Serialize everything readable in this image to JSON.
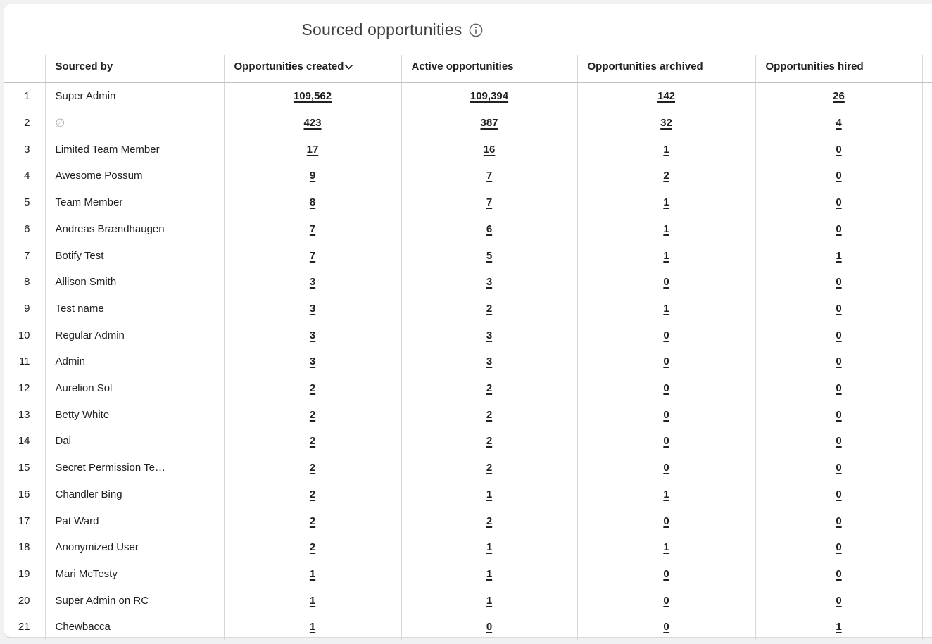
{
  "chart_data": {
    "type": "table",
    "title": "Sourced opportunities",
    "columns": [
      "Sourced by",
      "Opportunities created",
      "Active opportunities",
      "Opportunities archived",
      "Opportunities hired"
    ],
    "sort": {
      "column": "Opportunities created",
      "direction": "desc"
    },
    "null_symbol": "∅",
    "rows": [
      [
        1,
        "Super Admin",
        "109,562",
        "109,394",
        "142",
        "26"
      ],
      [
        2,
        "∅",
        "423",
        "387",
        "32",
        "4"
      ],
      [
        3,
        "Limited Team Member",
        "17",
        "16",
        "1",
        "0"
      ],
      [
        4,
        "Awesome Possum",
        "9",
        "7",
        "2",
        "0"
      ],
      [
        5,
        "Team Member",
        "8",
        "7",
        "1",
        "0"
      ],
      [
        6,
        "Andreas Brændhaugen",
        "7",
        "6",
        "1",
        "0"
      ],
      [
        7,
        "Botify Test",
        "7",
        "5",
        "1",
        "1"
      ],
      [
        8,
        "Allison Smith",
        "3",
        "3",
        "0",
        "0"
      ],
      [
        9,
        "Test name",
        "3",
        "2",
        "1",
        "0"
      ],
      [
        10,
        "Regular Admin",
        "3",
        "3",
        "0",
        "0"
      ],
      [
        11,
        "Admin",
        "3",
        "3",
        "0",
        "0"
      ],
      [
        12,
        "Aurelion Sol",
        "2",
        "2",
        "0",
        "0"
      ],
      [
        13,
        "Betty White",
        "2",
        "2",
        "0",
        "0"
      ],
      [
        14,
        "Dai",
        "2",
        "2",
        "0",
        "0"
      ],
      [
        15,
        "Secret Permission Te…",
        "2",
        "2",
        "0",
        "0"
      ],
      [
        16,
        "Chandler Bing",
        "2",
        "1",
        "1",
        "0"
      ],
      [
        17,
        "Pat Ward",
        "2",
        "2",
        "0",
        "0"
      ],
      [
        18,
        "Anonymized User",
        "2",
        "1",
        "1",
        "0"
      ],
      [
        19,
        "Mari McTesty",
        "1",
        "1",
        "0",
        "0"
      ],
      [
        20,
        "Super Admin on RC",
        "1",
        "1",
        "0",
        "0"
      ],
      [
        21,
        "Chewbacca",
        "1",
        "0",
        "0",
        "1"
      ]
    ]
  },
  "colors": {
    "page_bg": "#eff1f2",
    "card_bg": "#ffffff",
    "text": "#202124",
    "title_text": "#3c4043",
    "null_text": "#b4b9be",
    "grid_line": "#d6d9dc",
    "header_underline": "#bfc3c7",
    "icon": "#5f6368"
  }
}
